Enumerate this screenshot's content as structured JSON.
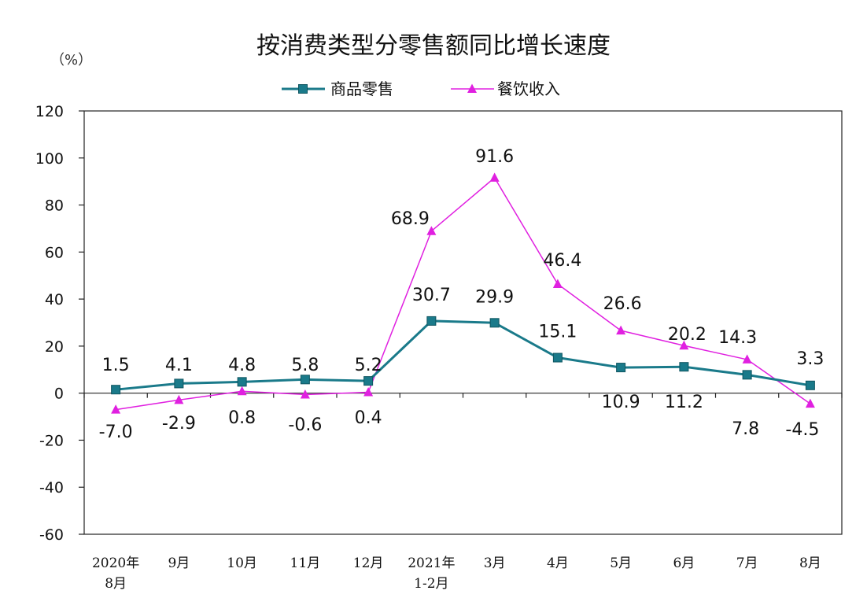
{
  "chart_data": {
    "type": "line",
    "title": "按消费类型分零售额同比增长速度",
    "unit": "（%）",
    "ylim": [
      -60,
      120
    ],
    "yticks": [
      "120",
      "100",
      "80",
      "60",
      "40",
      "20",
      "0",
      "-20",
      "-40",
      "-60"
    ],
    "categories": [
      [
        "2020年",
        "8月"
      ],
      [
        "9月"
      ],
      [
        "10月"
      ],
      [
        "11月"
      ],
      [
        "12月"
      ],
      [
        "2021年",
        "1-2月"
      ],
      [
        "3月"
      ],
      [
        "4月"
      ],
      [
        "5月"
      ],
      [
        "6月"
      ],
      [
        "7月"
      ],
      [
        "8月"
      ]
    ],
    "legend_position": "top-center",
    "grid": false,
    "series": [
      {
        "name": "商品零售",
        "color": "#1a7a8a",
        "marker": "square",
        "values": [
          1.5,
          4.1,
          4.8,
          5.8,
          5.2,
          30.7,
          29.9,
          15.1,
          10.9,
          11.2,
          7.8,
          3.3
        ],
        "labels": [
          "1.5",
          "4.1",
          "4.8",
          "5.8",
          "5.2",
          "30.7",
          "29.9",
          "15.1",
          "10.9",
          "11.2",
          "7.8",
          "3.3"
        ]
      },
      {
        "name": "餐饮收入",
        "color": "#e020e0",
        "marker": "triangle",
        "values": [
          -7.0,
          -2.9,
          0.8,
          -0.6,
          0.4,
          68.9,
          91.6,
          46.4,
          26.6,
          20.2,
          14.3,
          -4.5
        ],
        "labels": [
          "-7.0",
          "-2.9",
          "0.8",
          "-0.6",
          "0.4",
          "68.9",
          "91.6",
          "46.4",
          "26.6",
          "20.2",
          "14.3",
          "-4.5"
        ]
      }
    ]
  }
}
